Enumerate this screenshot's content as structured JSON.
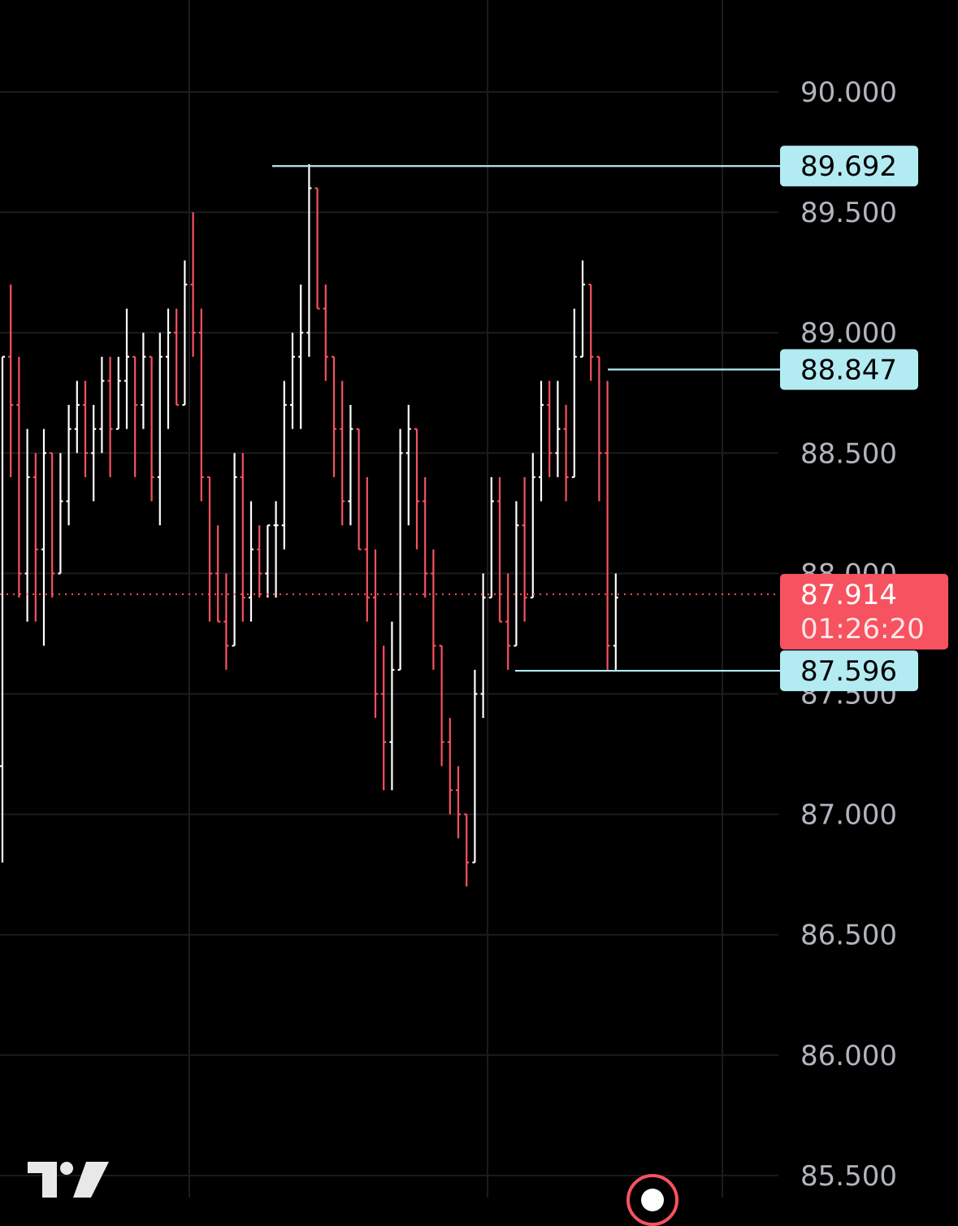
{
  "chart_data": {
    "type": "bar",
    "price_axis": {
      "ticks": [
        "90.000",
        "89.500",
        "89.000",
        "88.500",
        "88.000",
        "87.500",
        "87.000",
        "86.500",
        "86.000",
        "85.500"
      ],
      "tick_values": [
        90.0,
        89.5,
        89.0,
        88.5,
        88.0,
        87.5,
        87.0,
        86.5,
        86.0,
        85.5
      ],
      "ylim": [
        85.4,
        90.4
      ]
    },
    "grid": true,
    "current_price": {
      "value": 87.914,
      "label": "87.914",
      "countdown": "01:26:20",
      "color": "#f7525f"
    },
    "price_levels": [
      {
        "value": 89.692,
        "label": "89.692",
        "color": "#b2ebf2"
      },
      {
        "value": 88.847,
        "label": "88.847",
        "color": "#b2ebf2"
      },
      {
        "value": 87.596,
        "label": "87.596",
        "color": "#b2ebf2"
      }
    ],
    "up_color": "#ffffff",
    "down_color": "#f7525f",
    "bars": [
      [
        87.2,
        88.9,
        86.8,
        88.9
      ],
      [
        88.9,
        89.2,
        88.4,
        88.7
      ],
      [
        88.7,
        88.9,
        87.9,
        88.0
      ],
      [
        88.0,
        88.6,
        87.8,
        88.4
      ],
      [
        88.4,
        88.5,
        87.8,
        88.1
      ],
      [
        88.1,
        88.6,
        87.7,
        88.5
      ],
      [
        88.5,
        88.4,
        87.9,
        88.0
      ],
      [
        88.0,
        88.5,
        88.0,
        88.3
      ],
      [
        88.3,
        88.7,
        88.2,
        88.6
      ],
      [
        88.6,
        88.8,
        88.5,
        88.7
      ],
      [
        88.7,
        88.8,
        88.4,
        88.5
      ],
      [
        88.5,
        88.7,
        88.3,
        88.6
      ],
      [
        88.6,
        88.9,
        88.5,
        88.8
      ],
      [
        88.8,
        88.9,
        88.4,
        88.6
      ],
      [
        88.6,
        88.9,
        88.6,
        88.8
      ],
      [
        88.8,
        89.1,
        88.6,
        88.9
      ],
      [
        88.9,
        88.9,
        88.4,
        88.7
      ],
      [
        88.7,
        89.0,
        88.6,
        88.9
      ],
      [
        88.9,
        88.7,
        88.3,
        88.4
      ],
      [
        88.4,
        89.0,
        88.2,
        88.9
      ],
      [
        88.9,
        89.1,
        88.6,
        89.0
      ],
      [
        89.0,
        89.1,
        88.8,
        88.7
      ],
      [
        88.7,
        89.3,
        88.7,
        89.2
      ],
      [
        89.2,
        89.5,
        88.9,
        89.0
      ],
      [
        89.0,
        89.1,
        88.3,
        88.4
      ],
      [
        88.4,
        88.2,
        87.8,
        88.0
      ],
      [
        88.0,
        88.2,
        87.8,
        87.8
      ],
      [
        87.8,
        88.0,
        87.6,
        87.7
      ],
      [
        87.7,
        88.5,
        87.7,
        88.4
      ],
      [
        88.4,
        88.5,
        87.8,
        87.9
      ],
      [
        87.9,
        88.3,
        87.8,
        88.1
      ],
      [
        88.1,
        88.2,
        87.9,
        88.0
      ],
      [
        88.0,
        88.2,
        87.9,
        88.2
      ],
      [
        88.2,
        88.3,
        87.9,
        88.2
      ],
      [
        88.2,
        88.8,
        88.1,
        88.7
      ],
      [
        88.7,
        89.0,
        88.6,
        88.9
      ],
      [
        88.9,
        89.2,
        88.6,
        89.0
      ],
      [
        89.0,
        89.7,
        88.9,
        89.6
      ],
      [
        89.6,
        89.6,
        89.1,
        89.1
      ],
      [
        89.1,
        89.2,
        88.8,
        88.9
      ],
      [
        88.9,
        88.9,
        88.4,
        88.6
      ],
      [
        88.6,
        88.8,
        88.2,
        88.3
      ],
      [
        88.3,
        88.7,
        88.2,
        88.6
      ],
      [
        88.6,
        88.6,
        88.1,
        88.1
      ],
      [
        88.1,
        88.4,
        87.8,
        87.9
      ],
      [
        87.9,
        88.1,
        87.4,
        87.5
      ],
      [
        87.5,
        87.7,
        87.1,
        87.3
      ],
      [
        87.3,
        87.8,
        87.1,
        87.6
      ],
      [
        87.6,
        88.6,
        87.6,
        88.5
      ],
      [
        88.5,
        88.7,
        88.2,
        88.6
      ],
      [
        88.6,
        88.6,
        88.1,
        88.3
      ],
      [
        88.3,
        88.4,
        87.9,
        88.0
      ],
      [
        88.0,
        88.1,
        87.6,
        87.7
      ],
      [
        87.7,
        87.6,
        87.2,
        87.3
      ],
      [
        87.3,
        87.4,
        87.0,
        87.1
      ],
      [
        87.1,
        87.2,
        86.9,
        87.0
      ],
      [
        87.0,
        86.9,
        86.7,
        86.8
      ],
      [
        86.8,
        87.6,
        86.8,
        87.5
      ],
      [
        87.5,
        88.0,
        87.4,
        87.9
      ],
      [
        87.9,
        88.4,
        87.9,
        88.3
      ],
      [
        88.3,
        88.4,
        87.8,
        87.8
      ],
      [
        87.8,
        88.0,
        87.6,
        87.7
      ],
      [
        87.7,
        88.3,
        87.7,
        88.2
      ],
      [
        88.2,
        88.4,
        87.8,
        87.9
      ],
      [
        87.9,
        88.5,
        87.9,
        88.4
      ],
      [
        88.4,
        88.8,
        88.3,
        88.7
      ],
      [
        88.7,
        88.8,
        88.4,
        88.5
      ],
      [
        88.5,
        88.8,
        88.4,
        88.6
      ],
      [
        88.6,
        88.7,
        88.3,
        88.4
      ],
      [
        88.4,
        89.1,
        88.4,
        88.9
      ],
      [
        88.9,
        89.3,
        88.9,
        89.2
      ],
      [
        89.2,
        89.1,
        88.8,
        88.9
      ],
      [
        88.9,
        88.9,
        88.3,
        88.5
      ],
      [
        88.5,
        88.8,
        87.6,
        87.7
      ],
      [
        87.7,
        88.0,
        87.6,
        87.9
      ]
    ]
  },
  "footer": {
    "logo_icon": "tradingview-logo-icon",
    "alert_icon": "alert-icon"
  }
}
